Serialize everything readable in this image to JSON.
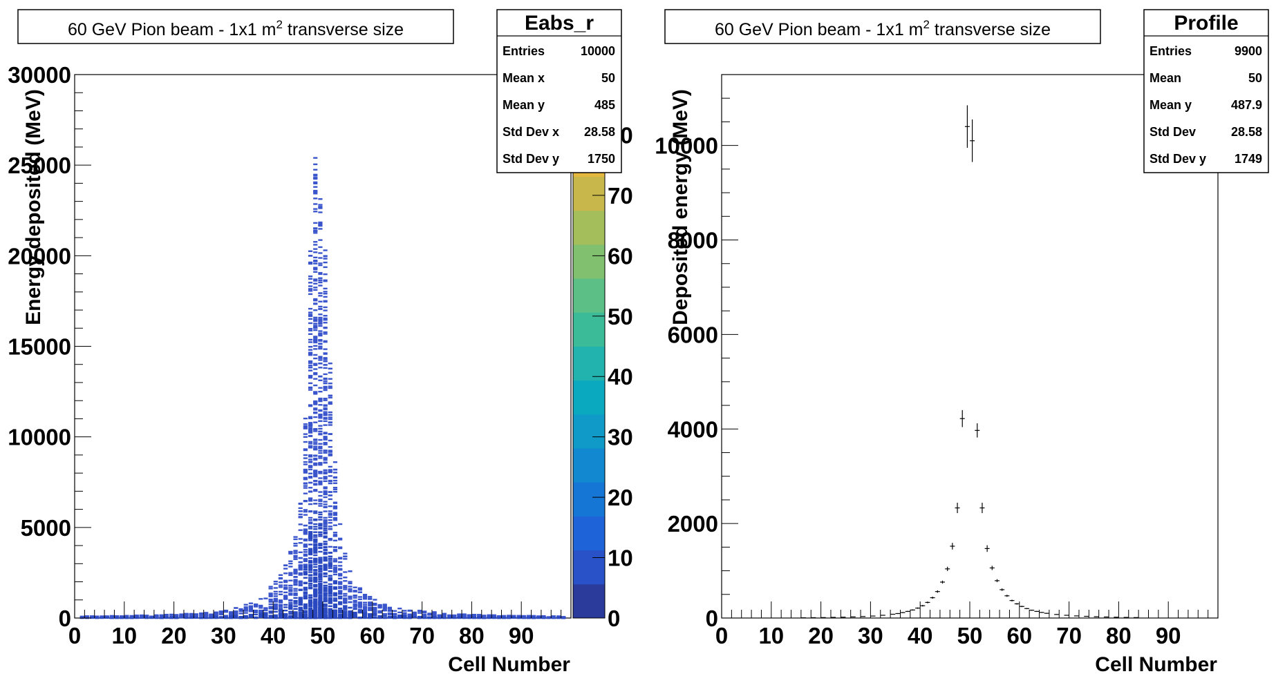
{
  "chart_data": [
    {
      "type": "heatmap",
      "title": "60 GeV Pion beam - 1x1 m",
      "title_sup": "2",
      "title_suffix": " transverse size",
      "xlabel": "Cell Number",
      "ylabel": "Energy deposited (MeV)",
      "xlim": [
        0,
        100
      ],
      "ylim": [
        0,
        30000
      ],
      "x_ticks": [
        "0",
        "10",
        "20",
        "30",
        "40",
        "50",
        "60",
        "70",
        "80",
        "90"
      ],
      "y_ticks": [
        "0",
        "5000",
        "10000",
        "15000",
        "20000",
        "25000",
        "30000"
      ],
      "z_ticks": [
        "0",
        "10",
        "20",
        "30",
        "40",
        "50",
        "60",
        "70",
        "80"
      ],
      "zlim": [
        0,
        90
      ],
      "stats": {
        "name": "Eabs_r",
        "rows": [
          {
            "label": "Entries",
            "value": "10000"
          },
          {
            "label": "Mean x",
            "value": "50"
          },
          {
            "label": "Mean y",
            "value": "485"
          },
          {
            "label": "Std Dev x",
            "value": "28.58"
          },
          {
            "label": "Std Dev y",
            "value": "1750"
          }
        ]
      },
      "profile_by_cell": {
        "cells": [
          2,
          5,
          10,
          15,
          20,
          25,
          30,
          35,
          38,
          40,
          42,
          44,
          45,
          46,
          47,
          48,
          49,
          50,
          51,
          52,
          53,
          54,
          55,
          56,
          58,
          60,
          62,
          65,
          70,
          75,
          80,
          85,
          90,
          95,
          98
        ],
        "max_energy": [
          120,
          110,
          130,
          160,
          200,
          280,
          420,
          780,
          1300,
          1900,
          2700,
          4000,
          5500,
          8000,
          15000,
          26300,
          24500,
          23000,
          18000,
          11000,
          6500,
          4200,
          3000,
          2200,
          1500,
          1100,
          800,
          550,
          400,
          260,
          200,
          160,
          130,
          110,
          100
        ]
      }
    },
    {
      "type": "scatter",
      "title": "60 GeV Pion beam - 1x1 m",
      "title_sup": "2",
      "title_suffix": " transverse size",
      "xlabel": "Cell Number",
      "ylabel": "Deposited energy (MeV)",
      "xlim": [
        0,
        100
      ],
      "ylim": [
        0,
        11500
      ],
      "x_ticks": [
        "0",
        "10",
        "20",
        "30",
        "40",
        "50",
        "60",
        "70",
        "80",
        "90"
      ],
      "y_ticks": [
        "0",
        "2000",
        "4000",
        "6000",
        "8000",
        "10000"
      ],
      "stats": {
        "name": "Profile",
        "rows": [
          {
            "label": "Entries",
            "value": "9900"
          },
          {
            "label": "Mean",
            "value": "50"
          },
          {
            "label": "Mean y",
            "value": "487.9"
          },
          {
            "label": "Std Dev",
            "value": "28.58"
          },
          {
            "label": "Std Dev y",
            "value": "1749"
          }
        ]
      },
      "points": [
        {
          "x": 16.5,
          "y": 5,
          "err": 2
        },
        {
          "x": 18.5,
          "y": 8,
          "err": 3
        },
        {
          "x": 20.5,
          "y": 10,
          "err": 3
        },
        {
          "x": 22.5,
          "y": 14,
          "err": 4
        },
        {
          "x": 24.5,
          "y": 18,
          "err": 4
        },
        {
          "x": 26.5,
          "y": 24,
          "err": 5
        },
        {
          "x": 28.5,
          "y": 32,
          "err": 5
        },
        {
          "x": 30.5,
          "y": 42,
          "err": 6
        },
        {
          "x": 32.5,
          "y": 58,
          "err": 7
        },
        {
          "x": 34.5,
          "y": 80,
          "err": 8
        },
        {
          "x": 35.5,
          "y": 95,
          "err": 9
        },
        {
          "x": 36.5,
          "y": 115,
          "err": 10
        },
        {
          "x": 37.5,
          "y": 140,
          "err": 11
        },
        {
          "x": 38.5,
          "y": 170,
          "err": 12
        },
        {
          "x": 39.5,
          "y": 210,
          "err": 14
        },
        {
          "x": 40.5,
          "y": 260,
          "err": 16
        },
        {
          "x": 41.5,
          "y": 330,
          "err": 18
        },
        {
          "x": 42.5,
          "y": 430,
          "err": 22
        },
        {
          "x": 43.5,
          "y": 560,
          "err": 26
        },
        {
          "x": 44.5,
          "y": 760,
          "err": 32
        },
        {
          "x": 45.5,
          "y": 1040,
          "err": 45
        },
        {
          "x": 46.5,
          "y": 1520,
          "err": 70
        },
        {
          "x": 47.5,
          "y": 2330,
          "err": 110
        },
        {
          "x": 48.5,
          "y": 4220,
          "err": 180
        },
        {
          "x": 49.5,
          "y": 10400,
          "err": 450
        },
        {
          "x": 50.5,
          "y": 10100,
          "err": 450
        },
        {
          "x": 51.5,
          "y": 3970,
          "err": 150
        },
        {
          "x": 52.5,
          "y": 2330,
          "err": 110
        },
        {
          "x": 53.5,
          "y": 1470,
          "err": 70
        },
        {
          "x": 54.5,
          "y": 1060,
          "err": 45
        },
        {
          "x": 55.5,
          "y": 790,
          "err": 32
        },
        {
          "x": 56.5,
          "y": 600,
          "err": 26
        },
        {
          "x": 57.5,
          "y": 470,
          "err": 22
        },
        {
          "x": 58.5,
          "y": 370,
          "err": 18
        },
        {
          "x": 59.5,
          "y": 300,
          "err": 16
        },
        {
          "x": 60.5,
          "y": 245,
          "err": 14
        },
        {
          "x": 61.5,
          "y": 200,
          "err": 12
        },
        {
          "x": 62.5,
          "y": 165,
          "err": 11
        },
        {
          "x": 63.5,
          "y": 140,
          "err": 10
        },
        {
          "x": 64.5,
          "y": 118,
          "err": 9
        },
        {
          "x": 65.5,
          "y": 100,
          "err": 9
        },
        {
          "x": 67.5,
          "y": 75,
          "err": 8
        },
        {
          "x": 69.5,
          "y": 58,
          "err": 7
        },
        {
          "x": 71.5,
          "y": 45,
          "err": 6
        },
        {
          "x": 73.5,
          "y": 36,
          "err": 5
        },
        {
          "x": 75.5,
          "y": 28,
          "err": 5
        },
        {
          "x": 77.5,
          "y": 22,
          "err": 4
        },
        {
          "x": 79.5,
          "y": 17,
          "err": 4
        },
        {
          "x": 81.5,
          "y": 13,
          "err": 3
        },
        {
          "x": 83.5,
          "y": 10,
          "err": 3
        }
      ]
    }
  ]
}
